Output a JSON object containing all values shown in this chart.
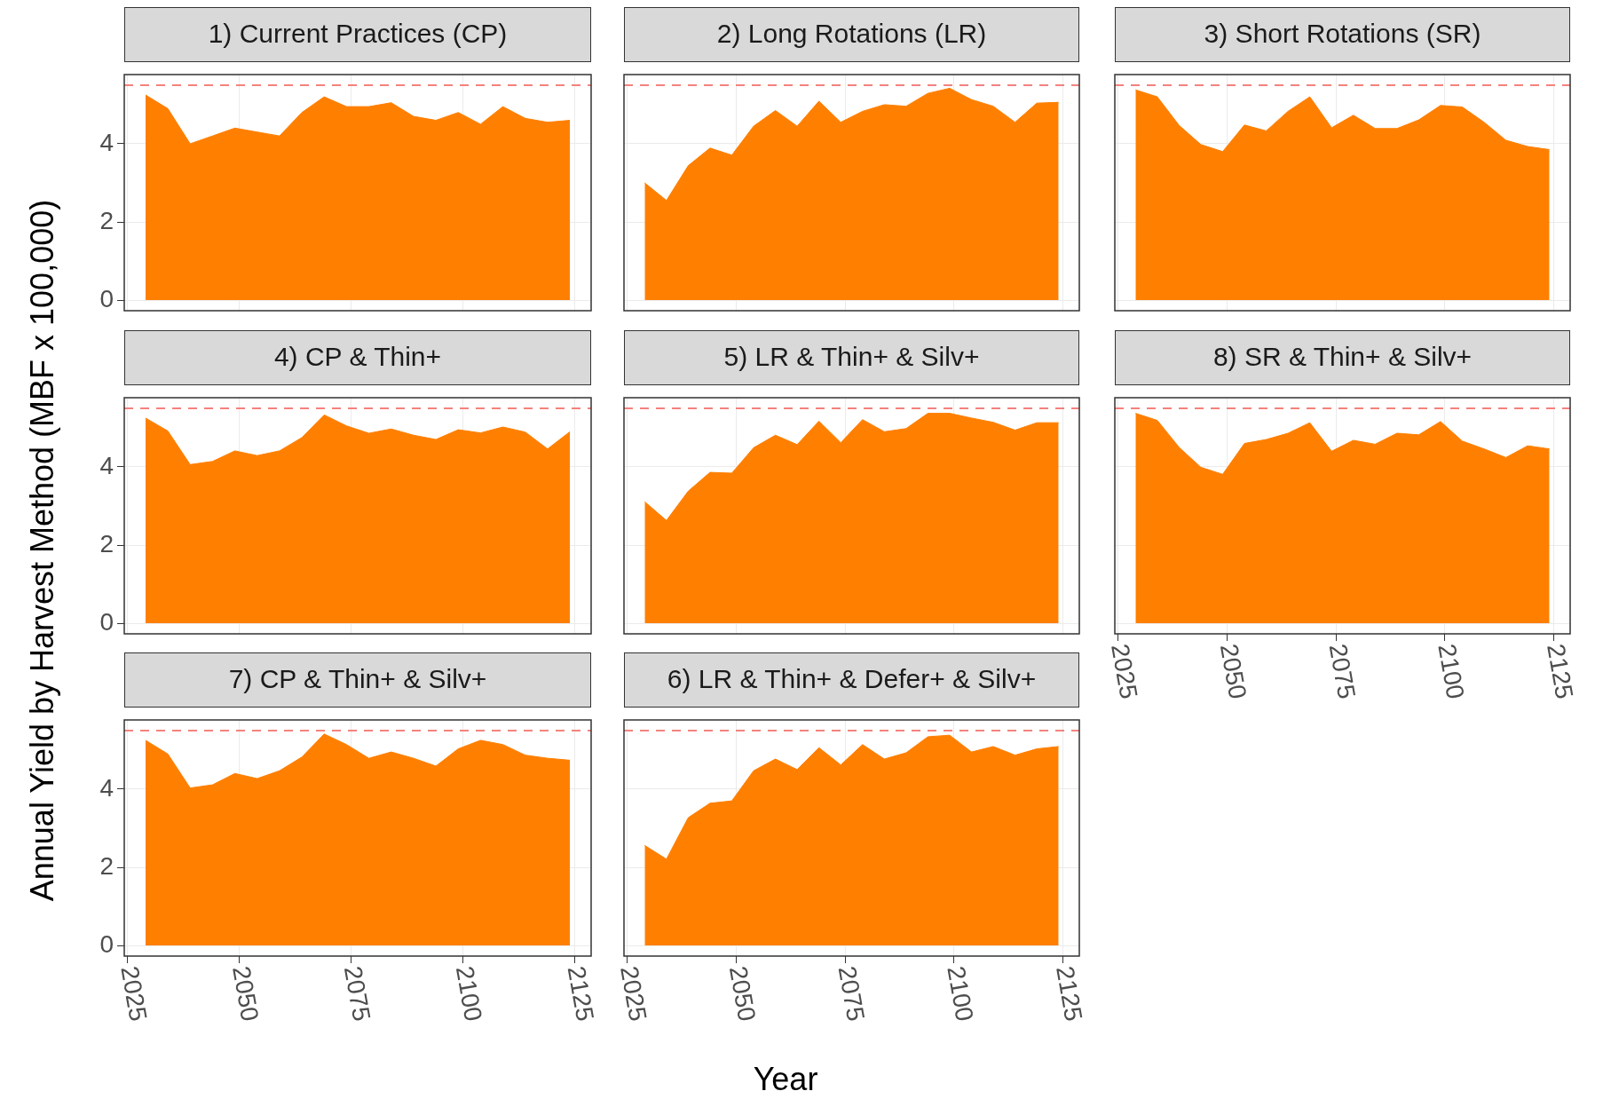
{
  "chart_data": [
    {
      "type": "area",
      "title": "1) Current Practices (CP)",
      "x": [
        2029,
        2034,
        2039,
        2044,
        2049,
        2054,
        2059,
        2064,
        2069,
        2074,
        2079,
        2084,
        2089,
        2094,
        2099,
        2104,
        2109,
        2114,
        2119,
        2124
      ],
      "values": [
        5.25,
        4.9,
        4.0,
        4.2,
        4.4,
        4.3,
        4.2,
        4.8,
        5.2,
        4.95,
        4.95,
        5.05,
        4.7,
        4.6,
        4.8,
        4.5,
        4.95,
        4.65,
        4.55,
        4.6
      ],
      "color": "#ff7f00",
      "xlim": [
        2024.25,
        2128.75
      ],
      "ylim": [
        -0.27,
        5.77
      ],
      "xticks": [
        2025,
        2050,
        2075,
        2100,
        2125
      ],
      "yticks": [
        0,
        2,
        4
      ],
      "grid": true,
      "tick_labels": "y",
      "ref_lines": [
        {
          "axis": "y",
          "value": 5.5,
          "color": "#f4827d",
          "line_style": "dashed"
        }
      ]
    },
    {
      "type": "area",
      "title": "2) Long Rotations (LR)",
      "x": [
        2029,
        2034,
        2039,
        2044,
        2049,
        2054,
        2059,
        2064,
        2069,
        2074,
        2079,
        2084,
        2089,
        2094,
        2099,
        2104,
        2109,
        2114,
        2119,
        2124
      ],
      "values": [
        3.0,
        2.55,
        3.44,
        3.89,
        3.71,
        4.45,
        4.85,
        4.45,
        5.09,
        4.55,
        4.83,
        5.0,
        4.96,
        5.29,
        5.42,
        5.13,
        4.96,
        4.55,
        5.04,
        5.06
      ],
      "color": "#ff7f00",
      "xlim": [
        2024.25,
        2128.75
      ],
      "ylim": [
        -0.27,
        5.77
      ],
      "xticks": [
        2025,
        2050,
        2075,
        2100,
        2125
      ],
      "yticks": [
        0,
        2,
        4
      ],
      "grid": true,
      "tick_labels": false,
      "ref_lines": [
        {
          "axis": "y",
          "value": 5.5,
          "color": "#f4827d",
          "line_style": "dashed"
        }
      ]
    },
    {
      "type": "area",
      "title": "3) Short Rotations (SR)",
      "x": [
        2029,
        2034,
        2039,
        2044,
        2049,
        2054,
        2059,
        2064,
        2069,
        2074,
        2079,
        2084,
        2089,
        2094,
        2099,
        2104,
        2109,
        2114,
        2119,
        2124
      ],
      "values": [
        5.38,
        5.2,
        4.47,
        3.98,
        3.8,
        4.48,
        4.33,
        4.83,
        5.2,
        4.41,
        4.73,
        4.39,
        4.39,
        4.61,
        4.98,
        4.94,
        4.55,
        4.09,
        3.93,
        3.85
      ],
      "color": "#ff7f00",
      "xlim": [
        2024.25,
        2128.75
      ],
      "ylim": [
        -0.27,
        5.77
      ],
      "xticks": [
        2025,
        2050,
        2075,
        2100,
        2125
      ],
      "yticks": [
        0,
        2,
        4
      ],
      "grid": true,
      "tick_labels": false,
      "ref_lines": [
        {
          "axis": "y",
          "value": 5.5,
          "color": "#f4827d",
          "line_style": "dashed"
        }
      ]
    },
    {
      "type": "area",
      "title": "4) CP & Thin+",
      "ylabel": "Annual Yield by Harvest Method (MBF x 100,000)",
      "x": [
        2029,
        2034,
        2039,
        2044,
        2049,
        2054,
        2059,
        2064,
        2069,
        2074,
        2079,
        2084,
        2089,
        2094,
        2099,
        2104,
        2109,
        2114,
        2119,
        2124
      ],
      "values": [
        5.25,
        4.92,
        4.06,
        4.14,
        4.41,
        4.29,
        4.41,
        4.75,
        5.33,
        5.05,
        4.86,
        4.97,
        4.81,
        4.7,
        4.95,
        4.87,
        5.02,
        4.89,
        4.46,
        4.9
      ],
      "color": "#ff7f00",
      "xlim": [
        2024.25,
        2128.75
      ],
      "ylim": [
        -0.27,
        5.77
      ],
      "xticks": [
        2025,
        2050,
        2075,
        2100,
        2125
      ],
      "yticks": [
        0,
        2,
        4
      ],
      "grid": true,
      "tick_labels": "y",
      "ref_lines": [
        {
          "axis": "y",
          "value": 5.5,
          "color": "#f4827d",
          "line_style": "dashed"
        }
      ]
    },
    {
      "type": "area",
      "title": "5) LR & Thin+ & Silv+",
      "x": [
        2029,
        2034,
        2039,
        2044,
        2049,
        2054,
        2059,
        2064,
        2069,
        2074,
        2079,
        2084,
        2089,
        2094,
        2099,
        2104,
        2109,
        2114,
        2119,
        2124
      ],
      "values": [
        3.11,
        2.63,
        3.38,
        3.86,
        3.84,
        4.49,
        4.81,
        4.57,
        5.17,
        4.62,
        5.21,
        4.9,
        4.98,
        5.37,
        5.37,
        5.25,
        5.14,
        4.94,
        5.13,
        5.13
      ],
      "color": "#ff7f00",
      "xlim": [
        2024.25,
        2128.75
      ],
      "ylim": [
        -0.27,
        5.77
      ],
      "xticks": [
        2025,
        2050,
        2075,
        2100,
        2125
      ],
      "yticks": [
        0,
        2,
        4
      ],
      "grid": true,
      "tick_labels": false,
      "ref_lines": [
        {
          "axis": "y",
          "value": 5.5,
          "color": "#f4827d",
          "line_style": "dashed"
        }
      ]
    },
    {
      "type": "area",
      "title": "8) SR & Thin+ & Silv+",
      "x": [
        2029,
        2034,
        2039,
        2044,
        2049,
        2054,
        2059,
        2064,
        2069,
        2074,
        2079,
        2084,
        2089,
        2094,
        2099,
        2104,
        2109,
        2114,
        2119,
        2124
      ],
      "values": [
        5.37,
        5.19,
        4.5,
        3.99,
        3.81,
        4.6,
        4.7,
        4.86,
        5.13,
        4.4,
        4.68,
        4.58,
        4.86,
        4.82,
        5.16,
        4.66,
        4.46,
        4.24,
        4.54,
        4.46
      ],
      "color": "#ff7f00",
      "xlim": [
        2024.25,
        2128.75
      ],
      "ylim": [
        -0.27,
        5.77
      ],
      "xticks": [
        2025,
        2050,
        2075,
        2100,
        2125
      ],
      "yticks": [
        0,
        2,
        4
      ],
      "grid": true,
      "tick_labels": "x",
      "ref_lines": [
        {
          "axis": "y",
          "value": 5.5,
          "color": "#f4827d",
          "line_style": "dashed"
        }
      ]
    },
    {
      "type": "area",
      "title": "7) CP & Thin+ & Silv+",
      "x": [
        2029,
        2034,
        2039,
        2044,
        2049,
        2054,
        2059,
        2064,
        2069,
        2074,
        2079,
        2084,
        2089,
        2094,
        2099,
        2104,
        2109,
        2114,
        2119,
        2124
      ],
      "values": [
        5.25,
        4.9,
        4.03,
        4.11,
        4.4,
        4.27,
        4.47,
        4.82,
        5.41,
        5.14,
        4.79,
        4.95,
        4.79,
        4.59,
        5.03,
        5.25,
        5.14,
        4.87,
        4.79,
        4.74
      ],
      "color": "#ff7f00",
      "xlim": [
        2024.25,
        2128.75
      ],
      "ylim": [
        -0.27,
        5.77
      ],
      "xticks": [
        2025,
        2050,
        2075,
        2100,
        2125
      ],
      "yticks": [
        0,
        2,
        4
      ],
      "grid": true,
      "ref_lines": [
        {
          "axis": "y",
          "value": 5.5,
          "color": "#f4827d",
          "line_style": "dashed"
        }
      ]
    },
    {
      "type": "area",
      "title": "6) LR & Thin+ & Defer+ & Silv+",
      "xlabel": "Year",
      "x": [
        2029,
        2034,
        2039,
        2044,
        2049,
        2054,
        2059,
        2064,
        2069,
        2074,
        2079,
        2084,
        2089,
        2094,
        2099,
        2104,
        2109,
        2114,
        2119,
        2124
      ],
      "values": [
        2.56,
        2.21,
        3.27,
        3.64,
        3.7,
        4.47,
        4.77,
        4.5,
        5.06,
        4.62,
        5.14,
        4.77,
        4.93,
        5.34,
        5.38,
        4.95,
        5.09,
        4.87,
        5.03,
        5.09
      ],
      "color": "#ff7f00",
      "xlim": [
        2024.25,
        2128.75
      ],
      "ylim": [
        -0.27,
        5.77
      ],
      "xticks": [
        2025,
        2050,
        2075,
        2100,
        2125
      ],
      "yticks": [
        0,
        2,
        4
      ],
      "grid": true,
      "tick_labels": "x",
      "ref_lines": [
        {
          "axis": "y",
          "value": 5.5,
          "color": "#f4827d",
          "line_style": "dashed"
        }
      ]
    }
  ]
}
